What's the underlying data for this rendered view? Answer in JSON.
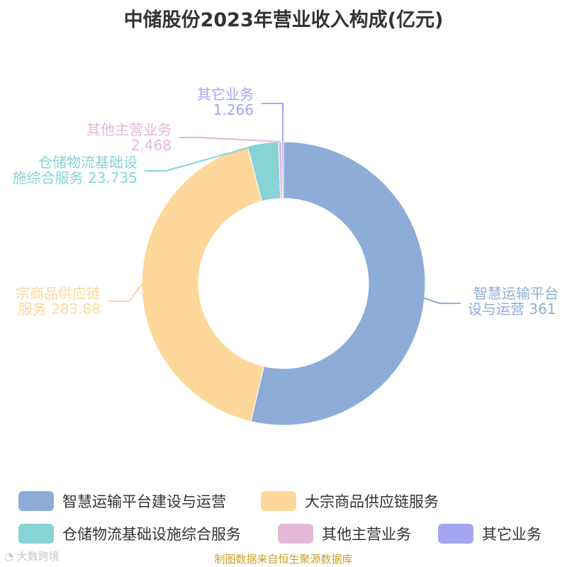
{
  "title": "中储股份2023年营业收入构成(亿元)",
  "chart_data": {
    "type": "pie",
    "subtype": "donut",
    "title": "中储股份2023年营业收入构成(亿元)",
    "unit": "亿元",
    "categories": [
      "智慧运输平台建设与运营",
      "大宗商品供应链服务",
      "仓储物流基础设施综合服务",
      "其他主营业务",
      "其它业务"
    ],
    "values": [
      361,
      283.88,
      23.735,
      2.468,
      1.266
    ],
    "colors": [
      "#8eacd8",
      "#fdd89a",
      "#88d3d6",
      "#e5b8d9",
      "#a3a6ef"
    ],
    "labels": [
      {
        "line1": "智慧运输平台",
        "line2": "设与运营 361",
        "color": "#8eacd8"
      },
      {
        "line1": "宗商品供应链",
        "line2": "服务 283.88",
        "color": "#fdd89a"
      },
      {
        "line1": "仓储物流基础设",
        "line2": "施综合服务 23.735",
        "color": "#88d3d6"
      },
      {
        "line1": "其他主营业务",
        "line2": "2.468",
        "color": "#e5b8d9"
      },
      {
        "line1": "其它业务",
        "line2": "1.266",
        "color": "#a3a6ef"
      }
    ],
    "legend_position": "bottom",
    "start_angle": "top, clockwise"
  },
  "legend": [
    {
      "label": "智慧运输平台建设与运营",
      "color": "#8eacd8"
    },
    {
      "label": "大宗商品供应链服务",
      "color": "#fdd89a"
    },
    {
      "label": "仓储物流基础设施综合服务",
      "color": "#88d3d6"
    },
    {
      "label": "其他主营业务",
      "color": "#e5b8d9"
    },
    {
      "label": "其它业务",
      "color": "#a3a6ef"
    }
  ],
  "source": "制图数据来自恒生聚源数据库",
  "watermark": "大数跨境"
}
